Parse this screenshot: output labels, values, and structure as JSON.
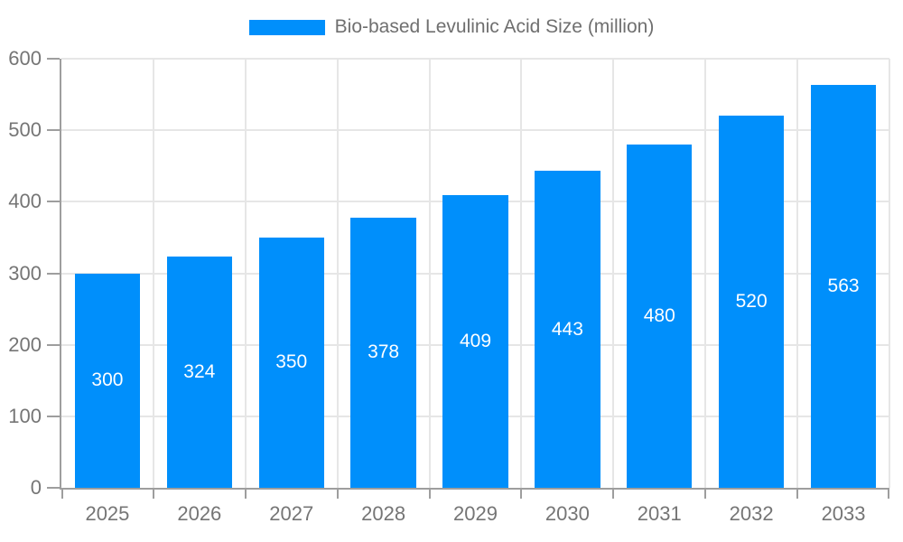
{
  "chart_data": {
    "type": "bar",
    "title": "",
    "xlabel": "",
    "ylabel": "",
    "categories": [
      "2025",
      "2026",
      "2027",
      "2028",
      "2029",
      "2030",
      "2031",
      "2032",
      "2033"
    ],
    "values": [
      300,
      324,
      350,
      378,
      409,
      443,
      480,
      520,
      563
    ],
    "legend": [
      {
        "label": "Bio-based Levulinic Acid Size (million)",
        "color": "#008FFB"
      }
    ],
    "legend_position": "top-center",
    "ylim": [
      0,
      600
    ],
    "yticks": [
      0,
      100,
      200,
      300,
      400,
      500,
      600
    ],
    "grid": true,
    "bar_labels_visible": true
  },
  "colors": {
    "bar": "#008FFB",
    "grid": "#e6e6e6",
    "axis": "#9e9e9e",
    "tick_label": "#757575",
    "legend_text": "#6f6f6f",
    "bar_label": "#ffffff",
    "background": "#ffffff"
  }
}
